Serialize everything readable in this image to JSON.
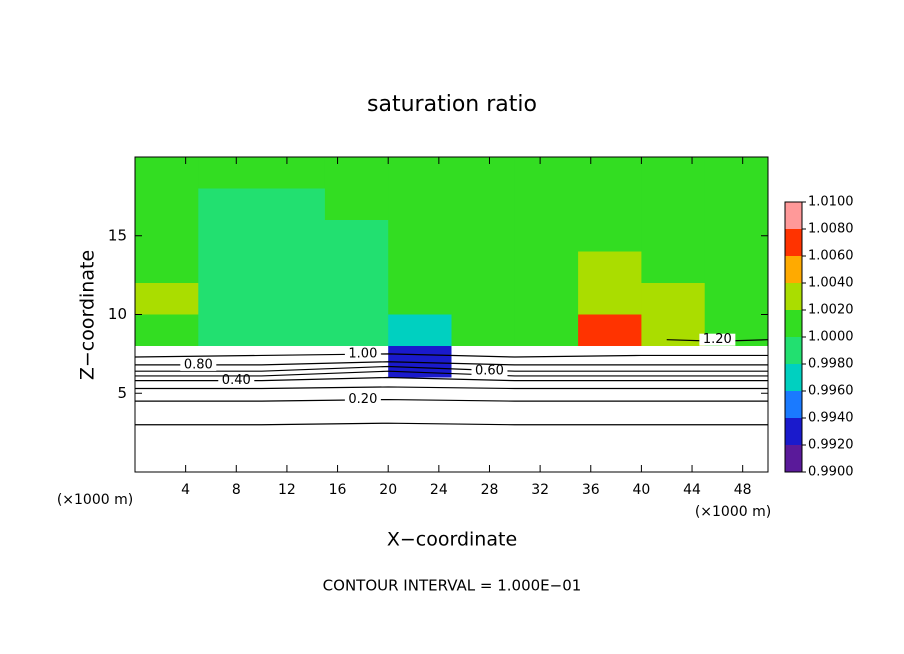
{
  "chart_data": {
    "type": "contour",
    "title": "saturation ratio",
    "x_label": "X−coordinate",
    "y_label": "Z−coordinate",
    "x_unit": "(×1000 m)",
    "y_unit": "(×1000 m)",
    "footer": "CONTOUR INTERVAL = 1.000E−01",
    "xlim": [
      0,
      50
    ],
    "ylim": [
      0,
      20
    ],
    "xticks": [
      4,
      8,
      12,
      16,
      20,
      24,
      28,
      32,
      36,
      40,
      44,
      48
    ],
    "yticks": [
      5,
      10,
      15
    ],
    "field": {
      "x": [
        2.5,
        7.5,
        12.5,
        17.5,
        22.5,
        27.5,
        32.5,
        37.5,
        42.5,
        47.5
      ],
      "z": [
        19,
        17,
        15,
        13,
        11,
        9,
        7,
        5,
        3,
        1
      ],
      "values": [
        [
          1.001,
          1.001,
          1.001,
          1.001,
          1.001,
          1.001,
          1.001,
          1.001,
          1.001,
          1.001
        ],
        [
          1.001,
          0.9995,
          0.9995,
          1.001,
          1.001,
          1.001,
          1.001,
          1.001,
          1.001,
          1.001
        ],
        [
          1.001,
          0.9995,
          0.999,
          0.9995,
          1.001,
          1.001,
          1.001,
          1.0015,
          1.001,
          1.001
        ],
        [
          1.0015,
          0.9995,
          0.9985,
          0.9995,
          1.0005,
          1.001,
          1.001,
          1.0025,
          1.0015,
          1.001
        ],
        [
          1.0025,
          0.9995,
          0.9985,
          0.9995,
          1.0,
          1.001,
          1.001,
          1.0035,
          1.002,
          1.001
        ],
        [
          1.001,
          0.9995,
          0.999,
          0.9985,
          0.996,
          1.001,
          1.001,
          1.0065,
          1.0025,
          1.001
        ],
        [
          0.9,
          0.98,
          0.95,
          0.97,
          0.993,
          0.98,
          0.95,
          0.96,
          0.95,
          0.97
        ],
        [
          0.4,
          0.4,
          0.4,
          0.4,
          0.4,
          0.4,
          0.4,
          0.4,
          0.4,
          0.4
        ],
        [
          0.15,
          0.15,
          0.15,
          0.15,
          0.15,
          0.15,
          0.15,
          0.15,
          0.15,
          0.15
        ],
        [
          0.05,
          0.05,
          0.05,
          0.05,
          0.05,
          0.05,
          0.05,
          0.05,
          0.05,
          0.05
        ]
      ]
    },
    "colorbar": {
      "ticks": [
        {
          "value": 0.99,
          "label": "0.9900"
        },
        {
          "value": 0.992,
          "label": "0.9920"
        },
        {
          "value": 0.994,
          "label": "0.9940"
        },
        {
          "value": 0.996,
          "label": "0.9960"
        },
        {
          "value": 0.998,
          "label": "0.9980"
        },
        {
          "value": 1.0,
          "label": "1.0000"
        },
        {
          "value": 1.002,
          "label": "1.0020"
        },
        {
          "value": 1.004,
          "label": "1.0040"
        },
        {
          "value": 1.006,
          "label": "1.0060"
        },
        {
          "value": 1.008,
          "label": "1.0080"
        },
        {
          "value": 1.01,
          "label": "1.0100"
        }
      ],
      "colors": [
        "#5a1a9a",
        "#1a1acc",
        "#1a7aff",
        "#00d0c0",
        "#22e070",
        "#33dd22",
        "#aadd00",
        "#ffaa00",
        "#ff3300",
        "#ff9999"
      ]
    },
    "contours": [
      {
        "level": 0.1,
        "x": [
          0,
          10,
          20,
          30,
          40,
          50
        ],
        "z": [
          3.0,
          3.0,
          3.1,
          3.0,
          3.0,
          3.0
        ]
      },
      {
        "level": 0.2,
        "label": "0.20",
        "x": [
          0,
          10,
          20,
          30,
          40,
          50
        ],
        "z": [
          4.5,
          4.5,
          4.6,
          4.5,
          4.5,
          4.5
        ]
      },
      {
        "level": 0.3,
        "x": [
          0,
          10,
          20,
          30,
          40,
          50
        ],
        "z": [
          5.3,
          5.3,
          5.4,
          5.3,
          5.3,
          5.3
        ]
      },
      {
        "level": 0.4,
        "label": "0.40",
        "x": [
          0,
          10,
          20,
          30,
          40,
          50
        ],
        "z": [
          5.8,
          5.8,
          6.0,
          5.8,
          5.8,
          5.8
        ]
      },
      {
        "level": 0.5,
        "x": [
          0,
          10,
          20,
          30,
          40,
          50
        ],
        "z": [
          6.1,
          6.1,
          6.4,
          6.1,
          6.1,
          6.1
        ]
      },
      {
        "level": 0.6,
        "label": "0.60",
        "x": [
          0,
          10,
          20,
          30,
          40,
          50
        ],
        "z": [
          6.4,
          6.4,
          6.7,
          6.4,
          6.4,
          6.4
        ]
      },
      {
        "level": 0.8,
        "label": "0.80",
        "x": [
          0,
          10,
          20,
          30,
          40,
          50
        ],
        "z": [
          6.8,
          6.8,
          7.0,
          6.8,
          6.8,
          6.8
        ]
      },
      {
        "level": 1.0,
        "label": "1.00",
        "x": [
          0,
          10,
          20,
          30,
          40,
          50
        ],
        "z": [
          7.3,
          7.4,
          7.5,
          7.3,
          7.4,
          7.4
        ]
      },
      {
        "level": 1.2,
        "label": "1.20",
        "x": [
          42,
          46,
          50
        ],
        "z": [
          8.4,
          8.3,
          8.4
        ]
      }
    ]
  }
}
